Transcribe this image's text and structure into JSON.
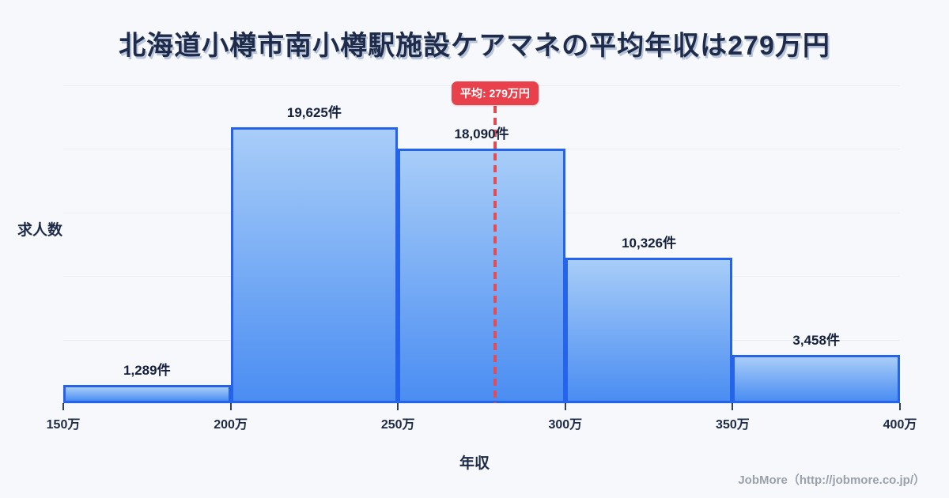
{
  "chart_data": {
    "type": "bar",
    "title": "北海道小樽市南小樽駅施設ケアマネの平均年収は279万円",
    "xlabel": "年収",
    "ylabel": "求人数",
    "categories": [
      "150万-200万",
      "200万-250万",
      "250万-300万",
      "300万-350万",
      "350万-400万"
    ],
    "values": [
      1289,
      19625,
      18090,
      10326,
      3458
    ],
    "value_labels": [
      "1,289件",
      "19,625件",
      "18,090件",
      "10,326件",
      "3,458件"
    ],
    "x_ticks": [
      "150万",
      "200万",
      "250万",
      "300万",
      "350万",
      "400万"
    ],
    "x_range": [
      150,
      400
    ],
    "ylim": [
      0,
      22600
    ],
    "grid": "horizontal",
    "grid_divisions": 5,
    "legend": "none",
    "average_line": {
      "x": 279,
      "label": "平均: 279万円"
    }
  },
  "footer": {
    "credit": "JobMore（http://jobmore.co.jp/）"
  },
  "colors": {
    "background": "#f7f8fb",
    "bar_fill_top": "#a8cdf8",
    "bar_fill_bottom": "#4a8df2",
    "bar_border": "#2563eb",
    "gridline": "#e7ebf2",
    "average_red": "#e8414b",
    "title_text": "#1e2b4a",
    "label_text": "#15213c",
    "footer_text": "#9aa1ad"
  }
}
